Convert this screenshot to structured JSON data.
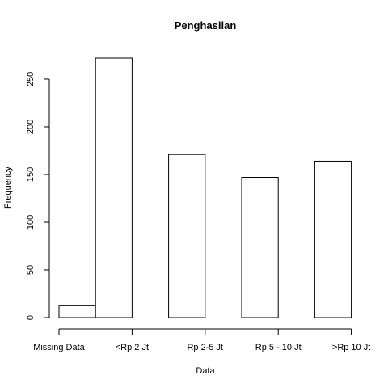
{
  "chart_data": {
    "type": "bar",
    "title": "Penghasilan",
    "xlabel": "Data",
    "ylabel": "Frequency",
    "categories": [
      "Missing Data",
      "<Rp 2 Jt",
      "",
      "Rp 2-5 Jt",
      "",
      "Rp 5 - 10 Jt",
      "",
      ">Rp 10 Jt"
    ],
    "values": [
      13,
      272,
      0,
      171,
      0,
      147,
      0,
      164
    ],
    "x_tick_labels": [
      "Missing Data",
      "<Rp 2 Jt",
      "Rp 2-5 Jt",
      "Rp 5 - 10 Jt",
      ">Rp 10 Jt"
    ],
    "y_ticks": [
      0,
      50,
      100,
      150,
      200,
      250
    ],
    "ylim": [
      0,
      272
    ],
    "grid": false,
    "bar_fill": "#ffffff",
    "bar_stroke": "#000000"
  }
}
